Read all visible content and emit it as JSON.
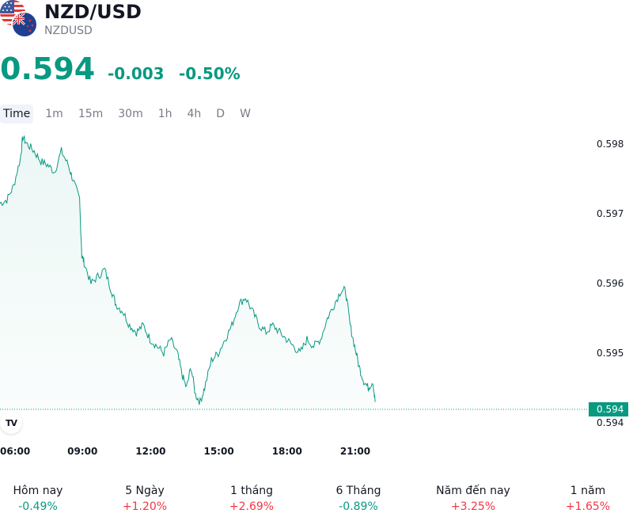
{
  "header": {
    "title": "NZD/USD",
    "ticker": "NZDUSD",
    "icons": [
      "usa-flag-icon",
      "new-zealand-flag-icon"
    ]
  },
  "quote": {
    "price": "0.594",
    "change": "-0.003",
    "change_percent": "-0.50%",
    "color": "#089981"
  },
  "timeframes": {
    "items": [
      "Time",
      "1m",
      "15m",
      "30m",
      "1h",
      "4h",
      "D",
      "W"
    ],
    "active": "Time"
  },
  "chart_data": {
    "type": "area",
    "symbol": "NZDUSD",
    "line_color": "#089981",
    "fill_color": "#e6f4f1",
    "x_ticks": [
      "06:00",
      "09:00",
      "12:00",
      "15:00",
      "18:00",
      "21:00"
    ],
    "y_ticks": [
      "0.598",
      "0.597",
      "0.596",
      "0.595",
      "0.594"
    ],
    "ylim": [
      0.5939,
      0.5982
    ],
    "xlim_hours": [
      6.0,
      22.5
    ],
    "last_price_label": "0.594",
    "points": [
      [
        6.0,
        0.59715
      ],
      [
        6.3,
        0.5972
      ],
      [
        6.6,
        0.5974
      ],
      [
        6.9,
        0.5978
      ],
      [
        7.0,
        0.5981
      ],
      [
        7.2,
        0.598
      ],
      [
        7.5,
        0.5979
      ],
      [
        7.8,
        0.59775
      ],
      [
        8.1,
        0.5977
      ],
      [
        8.4,
        0.5976
      ],
      [
        8.7,
        0.5979
      ],
      [
        9.0,
        0.5977
      ],
      [
        9.2,
        0.5975
      ],
      [
        9.5,
        0.5972
      ],
      [
        9.6,
        0.5964
      ],
      [
        9.7,
        0.5963
      ],
      [
        10.0,
        0.596
      ],
      [
        10.3,
        0.5961
      ],
      [
        10.6,
        0.5962
      ],
      [
        10.9,
        0.5959
      ],
      [
        11.1,
        0.5957
      ],
      [
        11.4,
        0.5956
      ],
      [
        11.7,
        0.5954
      ],
      [
        12.0,
        0.5953
      ],
      [
        12.3,
        0.5954
      ],
      [
        12.6,
        0.5952
      ],
      [
        12.9,
        0.5951
      ],
      [
        13.2,
        0.595
      ],
      [
        13.5,
        0.5952
      ],
      [
        13.8,
        0.595
      ],
      [
        14.0,
        0.5947
      ],
      [
        14.2,
        0.5945
      ],
      [
        14.4,
        0.5948
      ],
      [
        14.6,
        0.5944
      ],
      [
        14.8,
        0.5943
      ],
      [
        15.0,
        0.5945
      ],
      [
        15.3,
        0.5949
      ],
      [
        15.6,
        0.595
      ],
      [
        15.9,
        0.5952
      ],
      [
        16.2,
        0.5954
      ],
      [
        16.5,
        0.5957
      ],
      [
        16.8,
        0.5958
      ],
      [
        17.1,
        0.5956
      ],
      [
        17.4,
        0.5954
      ],
      [
        17.7,
        0.5953
      ],
      [
        18.0,
        0.5954
      ],
      [
        18.3,
        0.5953
      ],
      [
        18.6,
        0.5952
      ],
      [
        18.9,
        0.5951
      ],
      [
        19.2,
        0.595
      ],
      [
        19.5,
        0.5952
      ],
      [
        19.8,
        0.5951
      ],
      [
        20.1,
        0.5952
      ],
      [
        20.4,
        0.5955
      ],
      [
        20.7,
        0.5957
      ],
      [
        21.0,
        0.5959
      ],
      [
        21.2,
        0.5959
      ],
      [
        21.4,
        0.5954
      ],
      [
        21.6,
        0.5951
      ],
      [
        21.8,
        0.5948
      ],
      [
        22.0,
        0.5946
      ],
      [
        22.2,
        0.5945
      ],
      [
        22.4,
        0.5946
      ],
      [
        22.5,
        0.5943
      ]
    ]
  },
  "branding": {
    "logo_text": "TV"
  },
  "performance": [
    {
      "label": "Hôm nay",
      "value": "-0.49%",
      "color": "#089981"
    },
    {
      "label": "5 Ngày",
      "value": "+1.20%",
      "color": "#f23645"
    },
    {
      "label": "1 tháng",
      "value": "+2.69%",
      "color": "#f23645"
    },
    {
      "label": "6 Tháng",
      "value": "-0.89%",
      "color": "#089981"
    },
    {
      "label": "Năm đến nay",
      "value": "+3.25%",
      "color": "#f23645"
    },
    {
      "label": "1 năm",
      "value": "+1.65%",
      "color": "#f23645"
    }
  ]
}
